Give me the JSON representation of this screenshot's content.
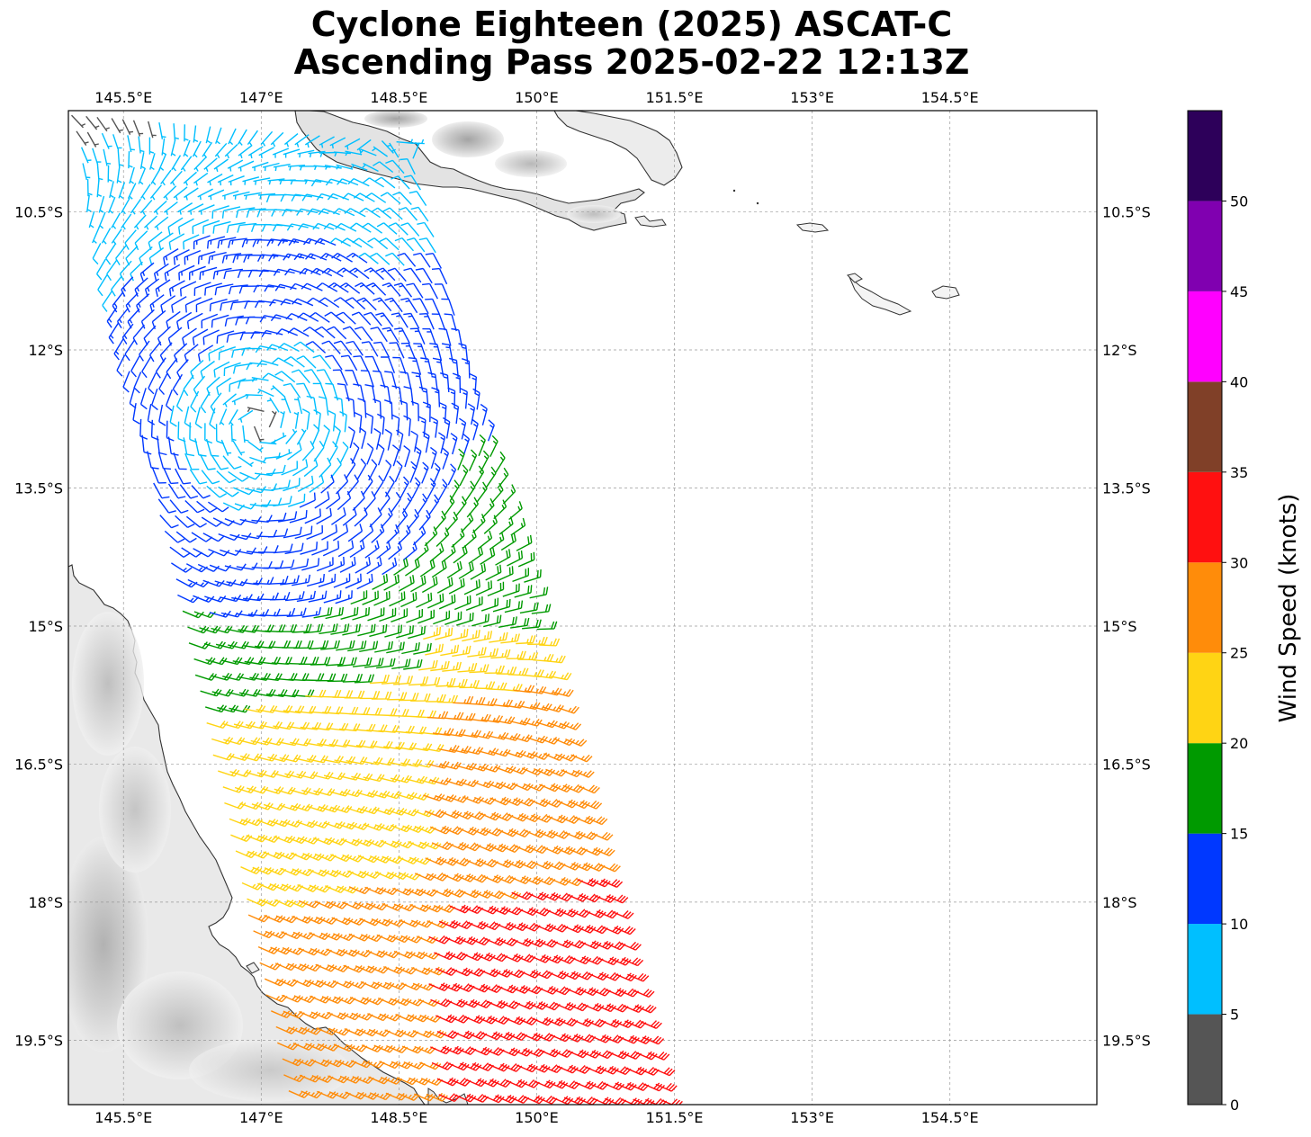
{
  "title": {
    "line1": "Cyclone Eighteen (2025) ASCAT-C",
    "line2": "Ascending Pass 2025-02-22 12:13Z"
  },
  "map": {
    "lon_range": [
      144.9,
      156.1
    ],
    "lat_range": [
      -9.4,
      -20.2
    ],
    "lon_ticks": [
      145.5,
      147,
      148.5,
      150,
      151.5,
      153,
      154.5
    ],
    "lon_tick_labels": [
      "145.5°E",
      "147°E",
      "148.5°E",
      "150°E",
      "151.5°E",
      "153°E",
      "154.5°E"
    ],
    "lat_ticks": [
      -10.5,
      -12,
      -13.5,
      -15,
      -16.5,
      -18,
      -19.5
    ],
    "lat_tick_labels": [
      "10.5°S",
      "12°S",
      "13.5°S",
      "15°S",
      "16.5°S",
      "18°S",
      "19.5°S"
    ],
    "grid": true,
    "coastline_color": "#333333",
    "land_shading": "grayscale terrain"
  },
  "chart_data": {
    "type": "wind_barb_map",
    "title": "Cyclone Eighteen (2025) ASCAT-C Ascending Pass 2025-02-22 12:13Z",
    "variable": "Wind Speed (knots)",
    "swath_corners_lonlat": [
      [
        144.95,
        -9.45
      ],
      [
        148.6,
        -9.75
      ],
      [
        151.35,
        -20.15
      ],
      [
        147.3,
        -20.05
      ]
    ],
    "center_approx_lonlat": [
      147.0,
      -12.8
    ],
    "colorbar": {
      "label": "Wind Speed (knots)",
      "bounds": [
        0,
        5,
        10,
        15,
        20,
        25,
        30,
        35,
        40,
        45,
        50,
        55
      ],
      "tick_labels": [
        "0",
        "5",
        "10",
        "15",
        "20",
        "25",
        "30",
        "35",
        "40",
        "45",
        "50"
      ],
      "colors": [
        "#555555",
        "#00bfff",
        "#0038ff",
        "#009a00",
        "#ffd414",
        "#ff8c0a",
        "#ff1010",
        "#804028",
        "#ff00ff",
        "#8000b0",
        "#2d005a"
      ]
    }
  }
}
